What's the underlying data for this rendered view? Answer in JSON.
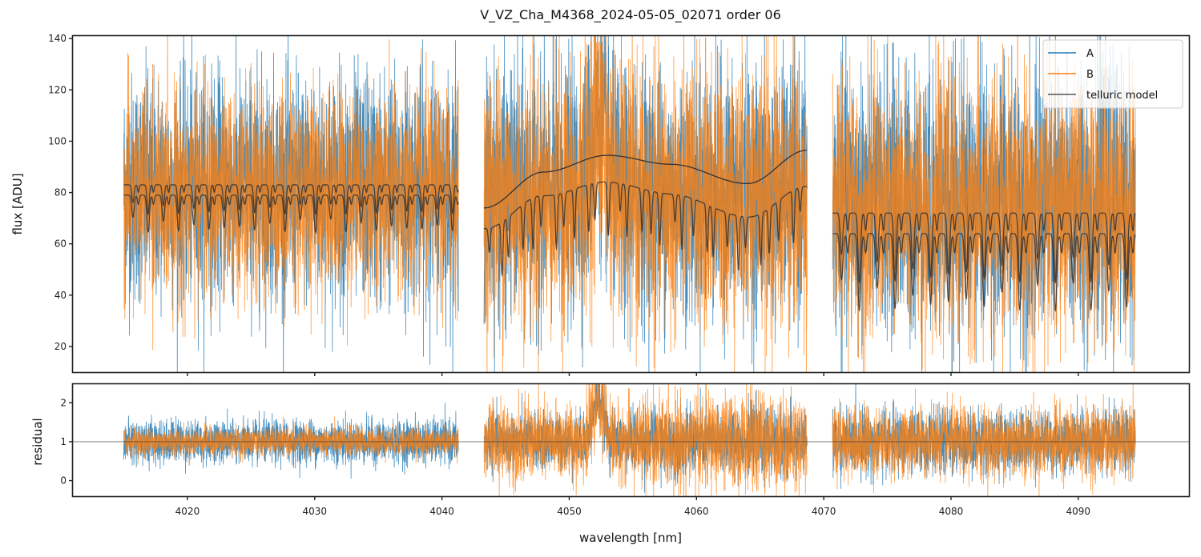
{
  "chart_data": [
    {
      "type": "line",
      "panel": "flux",
      "title": "V_VZ_Cha_M4368_2024-05-05_02071  order 06",
      "xlabel": "",
      "ylabel": "flux [ADU]",
      "xlim": [
        4011.0,
        4098.7
      ],
      "ylim": [
        10,
        141
      ],
      "yticks": [
        20,
        40,
        60,
        80,
        100,
        120,
        140
      ],
      "xticks": [
        4020,
        4030,
        4040,
        4050,
        4060,
        4070,
        4080,
        4090
      ],
      "grid": false,
      "legend": {
        "placement": "top-right",
        "entries": [
          {
            "label": "A",
            "color": "#1f77b4"
          },
          {
            "label": "B",
            "color": "#ff7f0e"
          },
          {
            "label": "telluric model",
            "color": "#333333"
          }
        ]
      },
      "segments": [
        {
          "x_start": 4015.0,
          "x_end": 4041.3,
          "A_level": 82,
          "B_level": 79,
          "noise_A": 22,
          "noise_B": 20,
          "model_upper_level": 83,
          "model_lower_level": 79,
          "model_line_depth": 12,
          "model_lines_count": 22
        },
        {
          "x_start": 4043.3,
          "x_end": 4068.7,
          "A_level": 80,
          "B_level": 78,
          "noise_A": 24,
          "noise_B": 26,
          "continuum_fit": [
            [
              4043.3,
              74
            ],
            [
              4048.0,
              88
            ],
            [
              4053.0,
              94.5
            ],
            [
              4058.0,
              91
            ],
            [
              4064.0,
              83.5
            ],
            [
              4068.7,
              96.5
            ]
          ],
          "model_lower_level": 76,
          "model_line_depth": 18
        },
        {
          "x_start": 4070.7,
          "x_end": 4094.5,
          "A_level": 76,
          "B_level": 74,
          "noise_A": 26,
          "noise_B": 25,
          "model_upper_level": 72,
          "model_lower_level": 64,
          "model_line_depth": 25,
          "model_lines_count": 17
        }
      ],
      "series": [
        {
          "name": "A",
          "color": "#1f77b4"
        },
        {
          "name": "B",
          "color": "#ff7f0e"
        },
        {
          "name": "telluric model",
          "color": "#333333"
        }
      ]
    },
    {
      "type": "line",
      "panel": "residual",
      "xlabel": "wavelength [nm]",
      "ylabel": "residual",
      "xlim": [
        4011.0,
        4098.7
      ],
      "ylim": [
        -0.4,
        2.5
      ],
      "yticks": [
        0,
        1,
        2
      ],
      "xticks": [
        4020,
        4030,
        4040,
        4050,
        4060,
        4070,
        4080,
        4090
      ],
      "xticklabels": [
        "4020",
        "4030",
        "4040",
        "4050",
        "4060",
        "4070",
        "4080",
        "4090"
      ],
      "reference_line": 1,
      "segments": [
        {
          "x_start": 4015.0,
          "x_end": 4041.3,
          "noise_A": 0.28,
          "noise_B": 0.18
        },
        {
          "x_start": 4043.3,
          "x_end": 4068.7,
          "noise_A": 0.35,
          "noise_B": 0.5,
          "bump_at": 4052.3,
          "bump_height": 1.1
        },
        {
          "x_start": 4070.7,
          "x_end": 4094.5,
          "noise_A": 0.4,
          "noise_B": 0.45
        }
      ]
    }
  ]
}
